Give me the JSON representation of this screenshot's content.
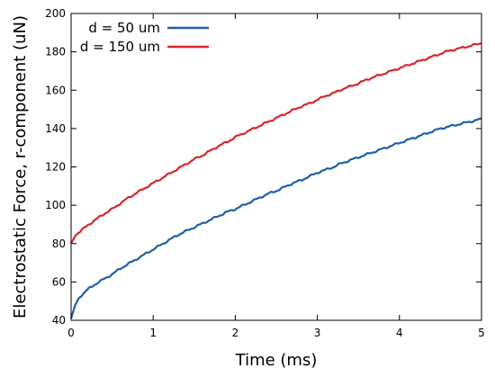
{
  "chart_data": {
    "type": "line",
    "title": "",
    "xlabel": "Time (ms)",
    "ylabel": "Electrostatic Force, r-component (uN)",
    "xlim": [
      0,
      5
    ],
    "ylim": [
      40,
      200
    ],
    "xticks": [
      0,
      1,
      2,
      3,
      4,
      5
    ],
    "yticks": [
      40,
      60,
      80,
      100,
      120,
      140,
      160,
      180,
      200
    ],
    "grid": false,
    "legend_position": "top-left",
    "series": [
      {
        "name": "d = 50 um",
        "color": "#1f5fa6",
        "x": [
          0,
          0.05,
          0.1,
          0.2,
          0.3,
          0.4,
          0.5,
          0.6,
          0.7,
          0.8,
          0.9,
          1.0,
          1.1,
          1.2,
          1.3,
          1.4,
          1.5,
          1.6,
          1.7,
          1.8,
          1.9,
          2.0,
          2.1,
          2.2,
          2.3,
          2.4,
          2.5,
          2.6,
          2.7,
          2.8,
          2.9,
          3.0,
          3.1,
          3.2,
          3.3,
          3.4,
          3.5,
          3.6,
          3.7,
          3.8,
          3.9,
          4.0,
          4.1,
          4.2,
          4.3,
          4.4,
          4.5,
          4.6,
          4.7,
          4.8,
          4.9,
          5.0
        ],
        "y": [
          41,
          48,
          52,
          56,
          59,
          61.5,
          64,
          67,
          69.5,
          72,
          74.5,
          77,
          79.5,
          82,
          84.5,
          86.5,
          88.5,
          90.5,
          92.5,
          94.5,
          96.5,
          98,
          100,
          102,
          104,
          106,
          107.5,
          109.5,
          111.5,
          113,
          115,
          117,
          118.5,
          120,
          122,
          123.5,
          125,
          126.5,
          128,
          129.5,
          131,
          132.5,
          134,
          135.5,
          137,
          138.5,
          140,
          141,
          142,
          143,
          144,
          145
        ]
      },
      {
        "name": "d = 150 um",
        "color": "#d7262b",
        "x": [
          0,
          0.05,
          0.1,
          0.2,
          0.3,
          0.4,
          0.5,
          0.6,
          0.7,
          0.8,
          0.9,
          1.0,
          1.1,
          1.2,
          1.3,
          1.4,
          1.5,
          1.6,
          1.7,
          1.8,
          1.9,
          2.0,
          2.1,
          2.2,
          2.3,
          2.4,
          2.5,
          2.6,
          2.7,
          2.8,
          2.9,
          3.0,
          3.1,
          3.2,
          3.3,
          3.4,
          3.5,
          3.6,
          3.7,
          3.8,
          3.9,
          4.0,
          4.1,
          4.2,
          4.3,
          4.4,
          4.5,
          4.6,
          4.7,
          4.8,
          4.9,
          5.0
        ],
        "y": [
          80,
          84,
          86,
          89.5,
          92.5,
          95.5,
          98,
          101,
          104,
          106.5,
          109,
          111.5,
          114,
          116.5,
          119,
          121.5,
          124,
          126,
          128.5,
          131,
          133,
          135.5,
          137.5,
          139.5,
          141.5,
          143.5,
          145.5,
          147.5,
          149.5,
          151.5,
          153,
          155,
          157,
          158.5,
          160.5,
          162,
          163.5,
          165.5,
          167,
          168.5,
          170,
          171.5,
          173,
          174.5,
          176,
          177.5,
          179,
          180.5,
          181.5,
          182.5,
          183.5,
          184.5
        ]
      }
    ]
  }
}
